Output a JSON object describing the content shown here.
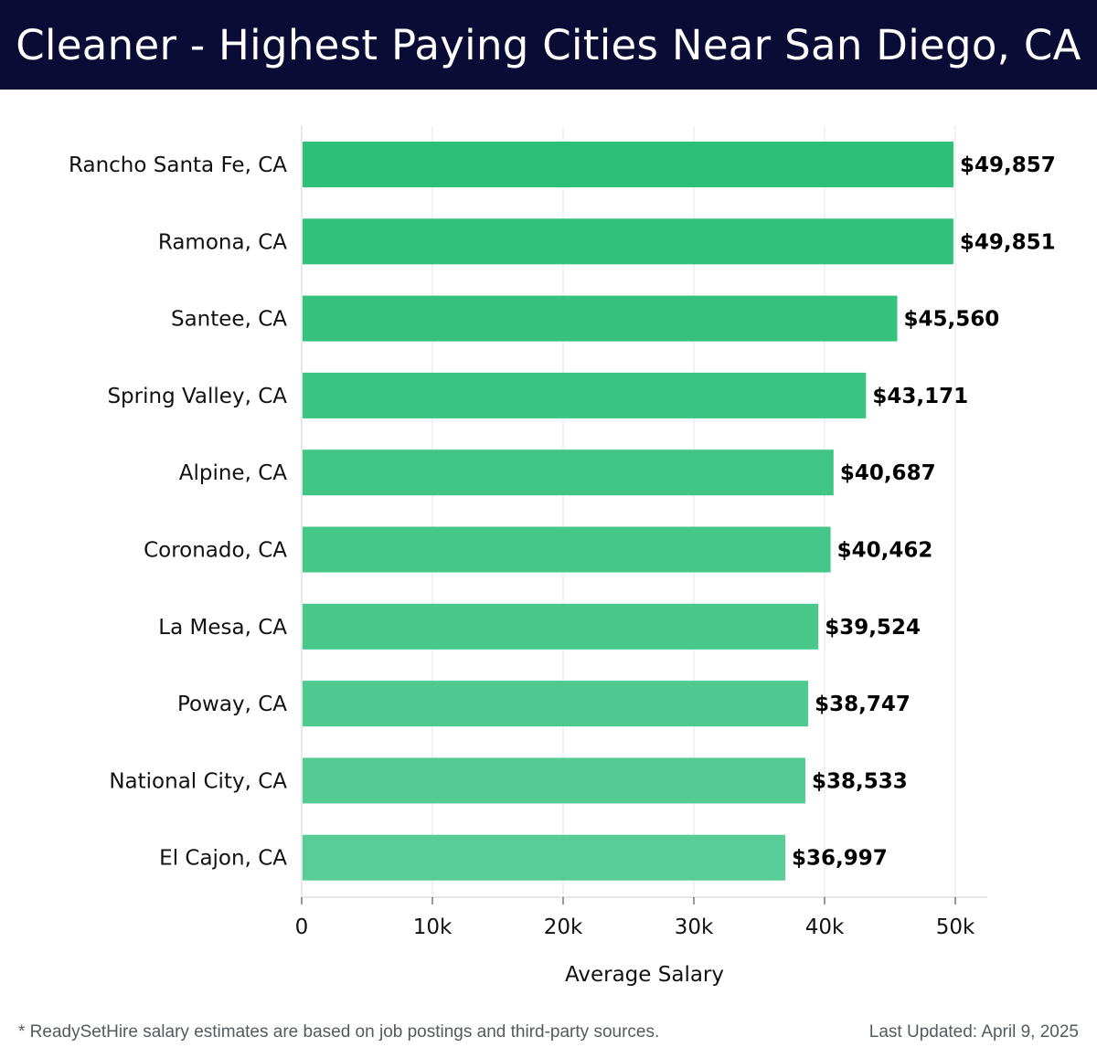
{
  "header": {
    "title": "Cleaner - Highest Paying Cities Near San Diego, CA"
  },
  "colors": {
    "header_bg": "#0b0c35",
    "bar_top": "#2cbf76",
    "bar_bottom": "#58cd97",
    "grid": "#e4e4e4",
    "axis": "#d0d0d0"
  },
  "chart_data": {
    "type": "bar",
    "orientation": "horizontal",
    "title": "Cleaner - Highest Paying Cities Near San Diego, CA",
    "xlabel": "Average Salary",
    "ylabel": "",
    "xlim": [
      0,
      50000
    ],
    "xticks": [
      0,
      10000,
      20000,
      30000,
      40000,
      50000
    ],
    "xtick_labels": [
      "0",
      "10k",
      "20k",
      "30k",
      "40k",
      "50k"
    ],
    "grid": true,
    "categories": [
      "Rancho Santa Fe, CA",
      "Ramona, CA",
      "Santee, CA",
      "Spring Valley, CA",
      "Alpine, CA",
      "Coronado, CA",
      "La Mesa, CA",
      "Poway, CA",
      "National City, CA",
      "El Cajon, CA"
    ],
    "values": [
      49857,
      49851,
      45560,
      43171,
      40687,
      40462,
      39524,
      38747,
      38533,
      36997
    ],
    "value_labels": [
      "$49,857",
      "$49,851",
      "$45,560",
      "$43,171",
      "$40,687",
      "$40,462",
      "$39,524",
      "$38,747",
      "$38,533",
      "$36,997"
    ]
  },
  "footer": {
    "note": "* ReadySetHire salary estimates are based on job postings and third-party sources.",
    "updated": "Last Updated: April 9, 2025"
  }
}
